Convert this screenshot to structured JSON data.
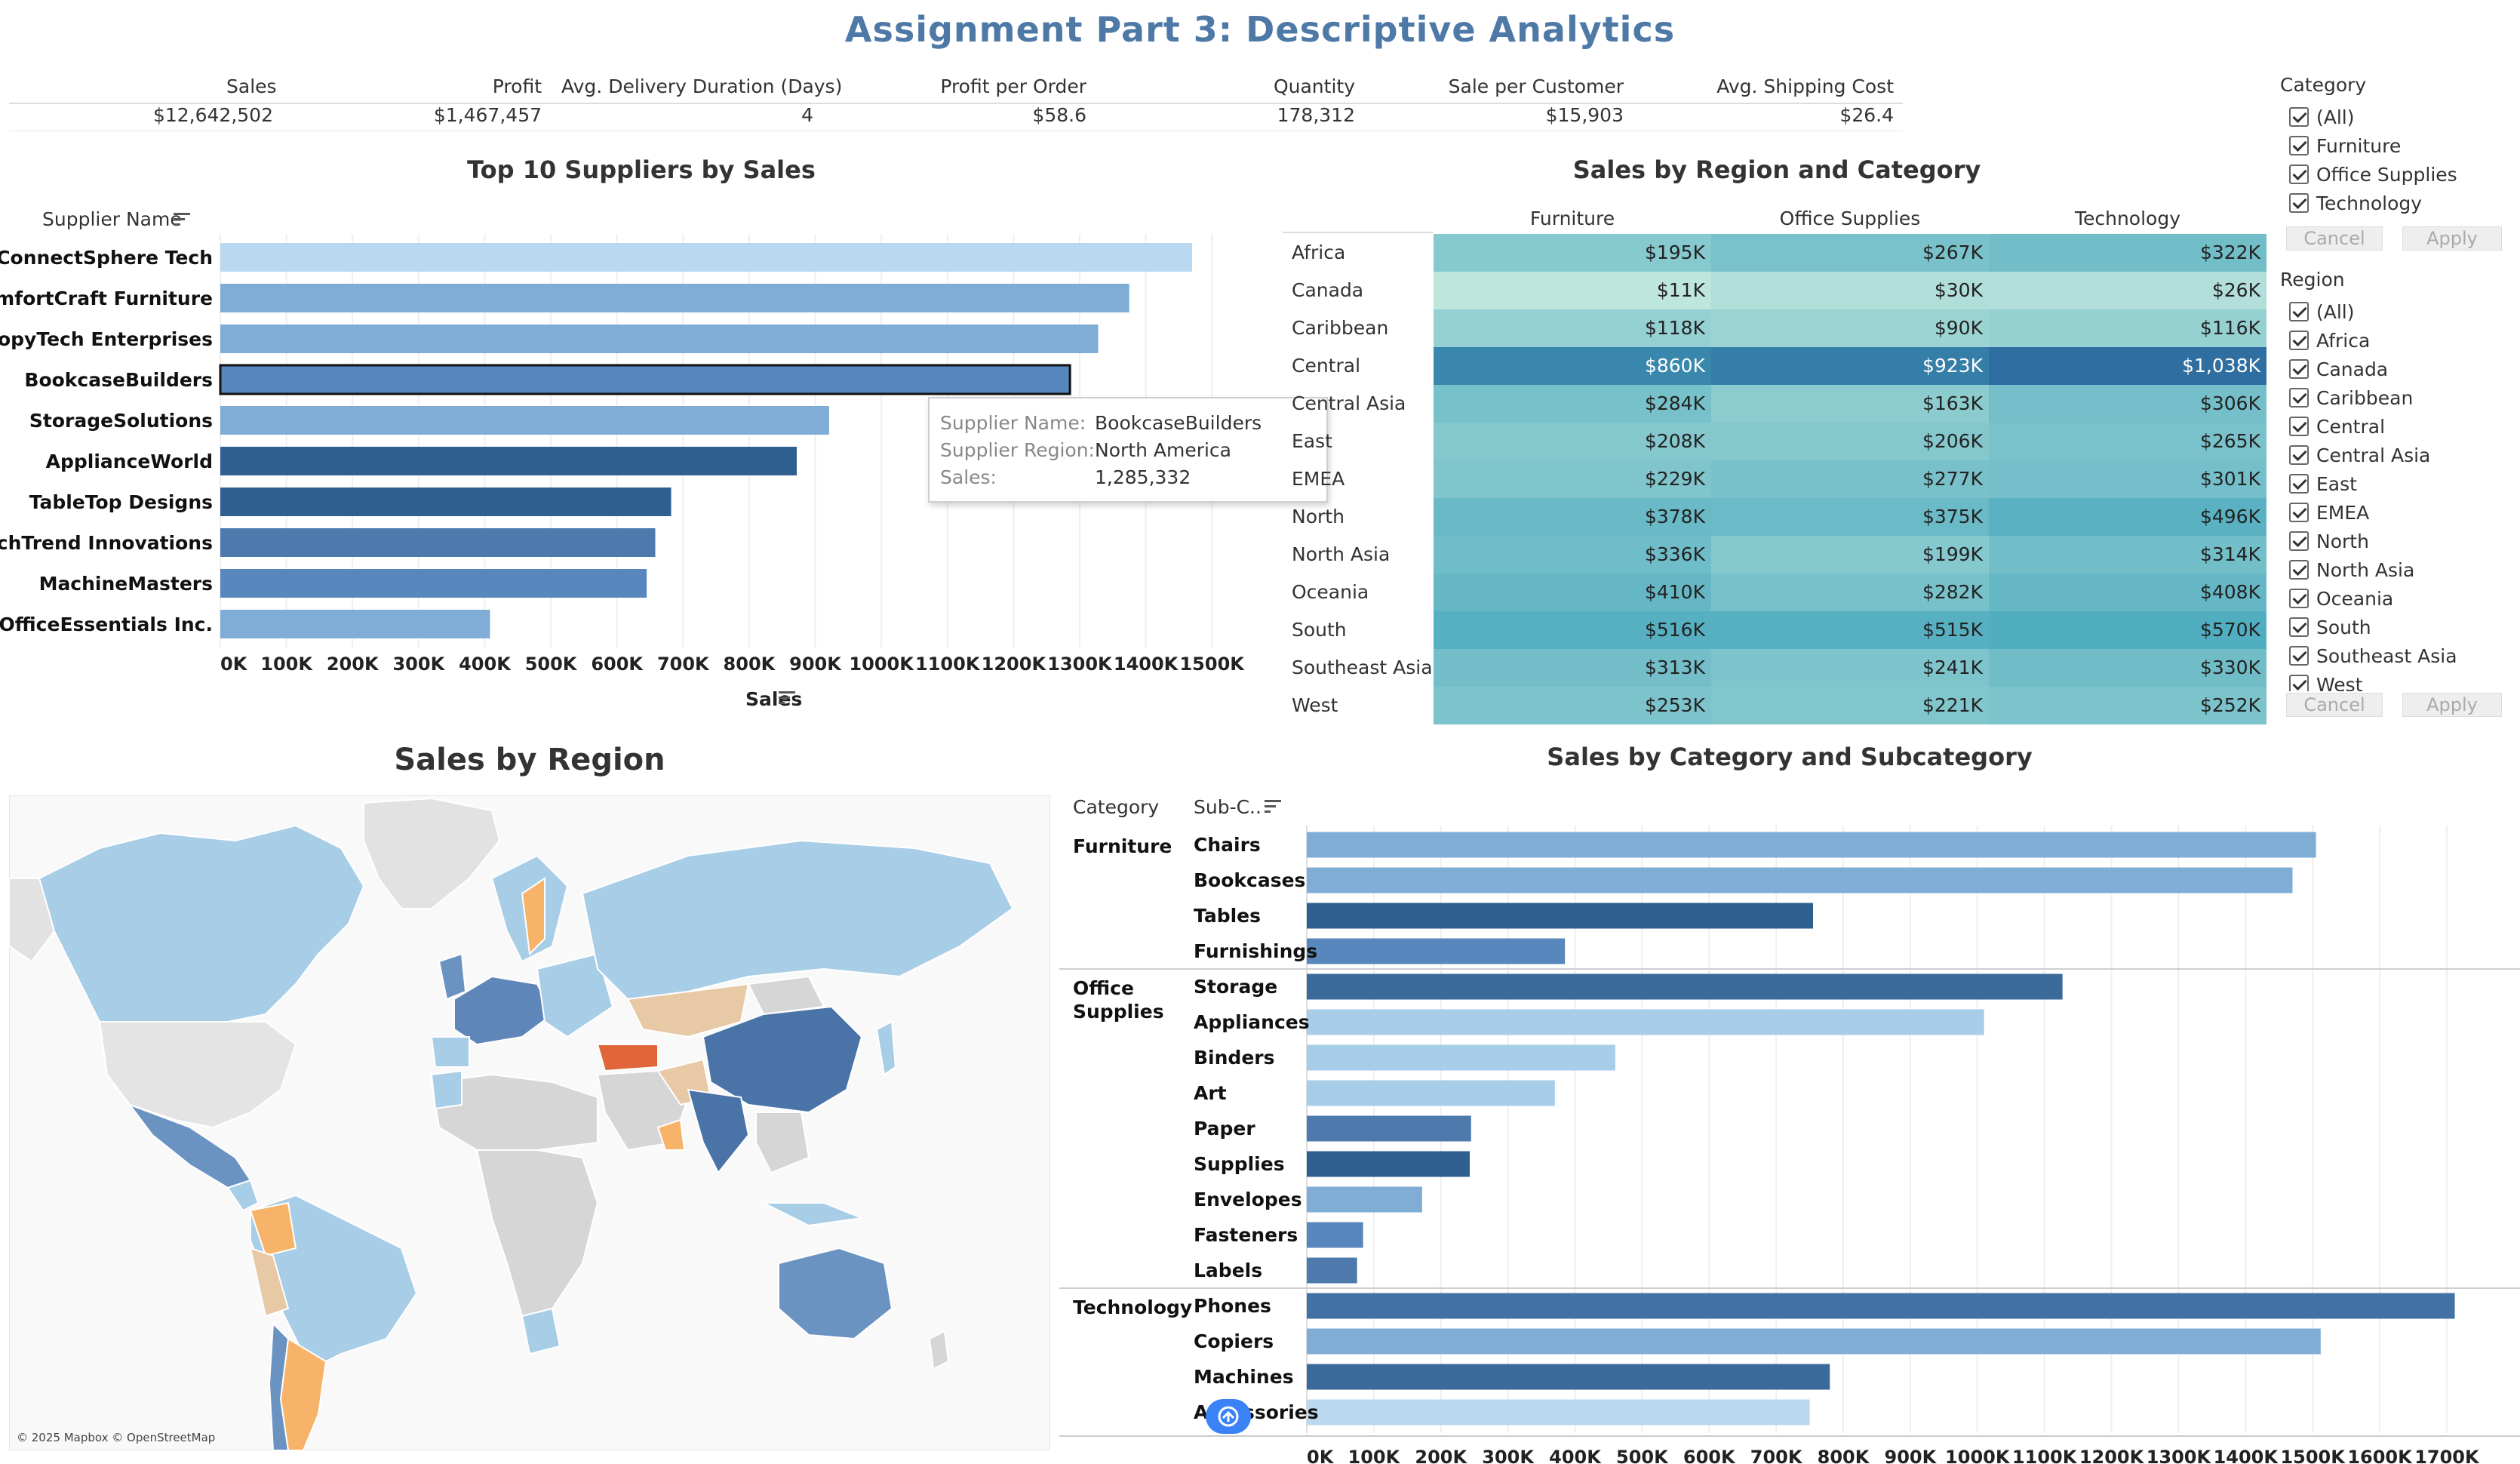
{
  "page_title": "Assignment Part 3: Descriptive Analytics",
  "kpis": [
    {
      "label": "Sales",
      "value": "$12,642,502"
    },
    {
      "label": "Profit",
      "value": "$1,467,457"
    },
    {
      "label": "Avg. Delivery Duration (Days)",
      "value": "4"
    },
    {
      "label": "Profit per Order",
      "value": "$58.6"
    },
    {
      "label": "Quantity",
      "value": "178,312"
    },
    {
      "label": "Sale per Customer",
      "value": "$15,903"
    },
    {
      "label": "Avg. Shipping Cost",
      "value": "$26.4"
    }
  ],
  "suppliers_chart": {
    "title": "Top 10 Suppliers by Sales",
    "row_header": "Supplier Name",
    "x_label": "Sales",
    "xticks": [
      "0K",
      "100K",
      "200K",
      "300K",
      "400K",
      "500K",
      "600K",
      "700K",
      "800K",
      "900K",
      "1000K",
      "1100K",
      "1200K",
      "1300K",
      "1400K",
      "1500K"
    ],
    "xmax": 1550000
  },
  "chart_data": [
    {
      "type": "bar",
      "title": "Top 10 Suppliers by Sales",
      "orientation": "horizontal",
      "xlabel": "Sales",
      "ylabel": "Supplier Name",
      "categories": [
        "ConnectSphere Tech",
        "ComfortCraft Furniture",
        "CopyTech Enterprises",
        "BookcaseBuilders",
        "StorageSolutions",
        "ApplianceWorld",
        "TableTop Designs",
        "TechTrend Innovations",
        "MachineMasters",
        "OfficeEssentials Inc."
      ],
      "values": [
        1470000,
        1375000,
        1328000,
        1285332,
        921000,
        872000,
        682000,
        658000,
        645000,
        408000
      ],
      "colors": [
        "#bad8ef",
        "#7fadd6",
        "#7fadd6",
        "#5787bd",
        "#7fadd6",
        "#2f5f8f",
        "#2f5f8f",
        "#4d79ad",
        "#5787bd",
        "#7fadd6"
      ],
      "xlim": [
        0,
        1550000
      ],
      "selected": "BookcaseBuilders"
    },
    {
      "type": "heatmap",
      "title": "Sales by Region and Category",
      "columns": [
        "Furniture",
        "Office Supplies",
        "Technology"
      ],
      "rows": [
        "Africa",
        "Canada",
        "Caribbean",
        "Central",
        "Central Asia",
        "East",
        "EMEA",
        "North",
        "North Asia",
        "Oceania",
        "South",
        "Southeast Asia",
        "West"
      ],
      "cells": [
        [
          "$195K",
          "$267K",
          "$322K"
        ],
        [
          "$11K",
          "$30K",
          "$26K"
        ],
        [
          "$118K",
          "$90K",
          "$116K"
        ],
        [
          "$860K",
          "$923K",
          "$1,038K"
        ],
        [
          "$284K",
          "$163K",
          "$306K"
        ],
        [
          "$208K",
          "$206K",
          "$265K"
        ],
        [
          "$229K",
          "$277K",
          "$301K"
        ],
        [
          "$378K",
          "$375K",
          "$496K"
        ],
        [
          "$336K",
          "$199K",
          "$314K"
        ],
        [
          "$410K",
          "$282K",
          "$408K"
        ],
        [
          "$516K",
          "$515K",
          "$570K"
        ],
        [
          "$313K",
          "$241K",
          "$330K"
        ],
        [
          "$253K",
          "$221K",
          "$252K"
        ]
      ],
      "values": [
        [
          195,
          267,
          322
        ],
        [
          11,
          30,
          26
        ],
        [
          118,
          90,
          116
        ],
        [
          860,
          923,
          1038
        ],
        [
          284,
          163,
          306
        ],
        [
          208,
          206,
          265
        ],
        [
          229,
          277,
          301
        ],
        [
          378,
          375,
          496
        ],
        [
          336,
          199,
          314
        ],
        [
          410,
          282,
          408
        ],
        [
          516,
          515,
          570
        ],
        [
          313,
          241,
          330
        ],
        [
          253,
          221,
          252
        ]
      ]
    },
    {
      "type": "bar",
      "title": "Sales by Category and Subcategory",
      "orientation": "horizontal",
      "groups": [
        {
          "category": "Furniture",
          "items": [
            {
              "name": "Chairs",
              "value": 1505000,
              "color": "#7fadd6"
            },
            {
              "name": "Bookcases",
              "value": 1470000,
              "color": "#7fadd6"
            },
            {
              "name": "Tables",
              "value": 755000,
              "color": "#2f5f8f"
            },
            {
              "name": "Furnishings",
              "value": 385000,
              "color": "#5787bd"
            }
          ]
        },
        {
          "category": "Office Supplies",
          "items": [
            {
              "name": "Storage",
              "value": 1127000,
              "color": "#3a6a9a"
            },
            {
              "name": "Appliances",
              "value": 1010000,
              "color": "#a7cde9"
            },
            {
              "name": "Binders",
              "value": 460000,
              "color": "#a7cde9"
            },
            {
              "name": "Art",
              "value": 370000,
              "color": "#a7cde9"
            },
            {
              "name": "Paper",
              "value": 245000,
              "color": "#4d79ad"
            },
            {
              "name": "Supplies",
              "value": 243000,
              "color": "#2f5f8f"
            },
            {
              "name": "Envelopes",
              "value": 172000,
              "color": "#7fadd6"
            },
            {
              "name": "Fasteners",
              "value": 84000,
              "color": "#5787bd"
            },
            {
              "name": "Labels",
              "value": 75000,
              "color": "#4d79ad"
            }
          ]
        },
        {
          "category": "Technology",
          "items": [
            {
              "name": "Phones",
              "value": 1712000,
              "color": "#4271a3"
            },
            {
              "name": "Copiers",
              "value": 1512000,
              "color": "#7fadd6"
            },
            {
              "name": "Machines",
              "value": 780000,
              "color": "#3a6a9a"
            },
            {
              "name": "Accessories",
              "value": 750000,
              "color": "#bad8ef"
            }
          ]
        }
      ],
      "xlim": [
        0,
        1780000
      ]
    }
  ],
  "heatmap_meta": {
    "title": "Sales by Region and Category"
  },
  "subcat_chart": {
    "title": "Sales by Category and Subcategory",
    "col_category": "Category",
    "col_sub": "Sub-C..",
    "xticks": [
      "0K",
      "100K",
      "200K",
      "300K",
      "400K",
      "500K",
      "600K",
      "700K",
      "800K",
      "900K",
      "1000K",
      "1100K",
      "1200K",
      "1300K",
      "1400K",
      "1500K",
      "1600K",
      "1700K"
    ]
  },
  "map": {
    "title": "Sales by Region",
    "attribution": "© 2025 Mapbox © OpenStreetMap"
  },
  "tooltip": {
    "rows": [
      {
        "k": "Supplier Name:",
        "v": "BookcaseBuilders"
      },
      {
        "k": "Supplier Region:",
        "v": "North America"
      },
      {
        "k": "Sales:",
        "v": "1,285,332"
      }
    ]
  },
  "filters": {
    "category": {
      "title": "Category",
      "items": [
        "(All)",
        "Furniture",
        "Office Supplies",
        "Technology"
      ],
      "cancel": "Cancel",
      "apply": "Apply"
    },
    "region": {
      "title": "Region",
      "items": [
        "(All)",
        "Africa",
        "Canada",
        "Caribbean",
        "Central",
        "Central Asia",
        "East",
        "EMEA",
        "North",
        "North Asia",
        "Oceania",
        "South",
        "Southeast Asia",
        "West"
      ],
      "cancel": "Cancel",
      "apply": "Apply"
    }
  }
}
